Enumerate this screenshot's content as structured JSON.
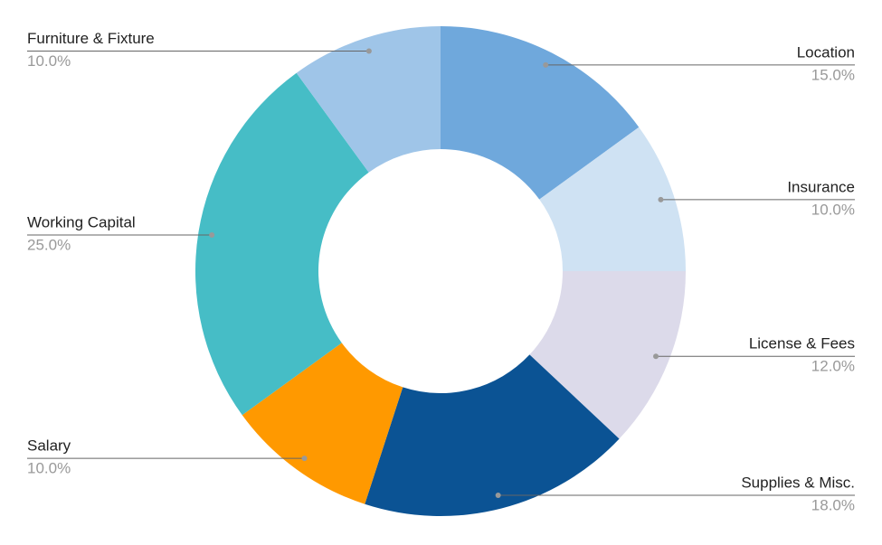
{
  "chart_data": {
    "type": "donut",
    "categories": [
      "Location",
      "Insurance",
      "License & Fees",
      "Supplies & Misc.",
      "Salary",
      "Working Capital",
      "Furniture & Fixture"
    ],
    "values": [
      15,
      10,
      12,
      18,
      10,
      25,
      10
    ],
    "value_labels": [
      "15.0%",
      "10.0%",
      "12.0%",
      "18.0%",
      "10.0%",
      "25.0%",
      "10.0%"
    ],
    "colors": [
      "#6fa8dc",
      "#cfe2f3",
      "#dcdaea",
      "#0b5394",
      "#ff9900",
      "#46bdc6",
      "#9fc5e8"
    ]
  }
}
